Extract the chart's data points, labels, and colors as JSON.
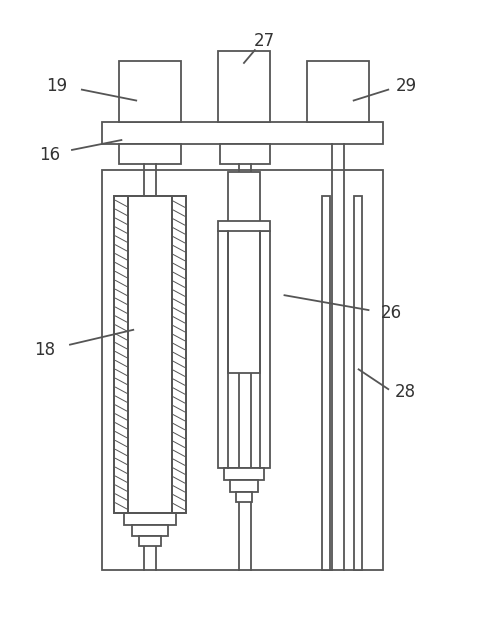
{
  "fig_width": 4.81,
  "fig_height": 6.3,
  "dpi": 100,
  "lc": "#555555",
  "lw": 1.3,
  "bg": "white"
}
